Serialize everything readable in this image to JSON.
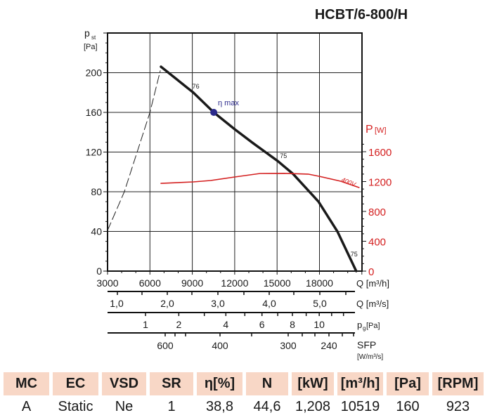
{
  "chart_data": {
    "type": "line",
    "title": "HCBT/6-800/H",
    "xlabel": "Q [m³/h]",
    "ylabel_main": "p",
    "ylabel_sub": "st",
    "ylabel_unit": "[Pa]",
    "y2label_main": "P",
    "y2label_unit": "[W]",
    "xlim": [
      3000,
      21000
    ],
    "ylim": [
      0,
      240
    ],
    "y2lim": [
      0,
      2260
    ],
    "grid": true,
    "x_ticks": [
      "3000",
      "6000",
      "9000",
      "12000",
      "15000",
      "18000"
    ],
    "y_ticks": [
      "0",
      "40",
      "80",
      "120",
      "160",
      "200"
    ],
    "y2_ticks": [
      "0",
      "400",
      "800",
      "1200",
      "1600"
    ],
    "colors": {
      "pressure": "#1a1a1a",
      "power": "#d42020",
      "eta_point": "#2b2a8c",
      "y2_axis": "#d42020",
      "header_bg": "#f8d7c6"
    },
    "series": [
      {
        "key": "pressure",
        "x": [
          6780,
          9070,
          10519,
          12000,
          13300,
          15040,
          16130,
          17930,
          19270,
          20600
        ],
        "y": [
          206,
          180,
          160,
          143,
          129,
          111,
          98,
          70,
          40,
          0
        ]
      },
      {
        "key": "stall_limit",
        "style": "dashed",
        "x": [
          3000,
          4190,
          6000,
          6730
        ],
        "y": [
          41,
          80,
          160,
          202
        ]
      },
      {
        "key": "power",
        "axis": "right",
        "label": "400V",
        "x": [
          6780,
          9070,
          10300,
          12000,
          13800,
          15500,
          17200,
          18000,
          19500,
          20800
        ],
        "y": [
          1176,
          1195,
          1214,
          1261,
          1308,
          1310,
          1300,
          1270,
          1205,
          1120
        ]
      }
    ],
    "annotations": [
      {
        "text": "76",
        "x": 9000,
        "y": 184
      },
      {
        "text": "75",
        "x": 15200,
        "y": 114
      },
      {
        "text": "75",
        "x": 20200,
        "y": 15
      }
    ],
    "eta_max": {
      "label": "η max",
      "x": 10519,
      "y": 160
    },
    "secondary_axes": [
      {
        "label": "Q [m³/s]",
        "ticks": [
          "1,0",
          "2,0",
          "3,0",
          "4,0",
          "5,0"
        ]
      },
      {
        "label": "p",
        "label_sub": "g",
        "label_unit": "[Pa]",
        "ticks": [
          "1",
          "2",
          "4",
          "6",
          "8",
          "10"
        ]
      },
      {
        "label": "SFP",
        "label_unit": "[W/m³/s]",
        "ticks": [
          "600",
          "400",
          "300",
          "240"
        ]
      }
    ]
  },
  "table": {
    "headers": [
      "MC",
      "EC",
      "VSD",
      "SR",
      "η[%]",
      "N",
      "[kW]",
      "[m³/h]",
      "[Pa]",
      "[RPM]"
    ],
    "values": [
      "A",
      "Static",
      "Ne",
      "1",
      "38,8",
      "44,6",
      "1,208",
      "10519",
      "160",
      "923"
    ]
  }
}
